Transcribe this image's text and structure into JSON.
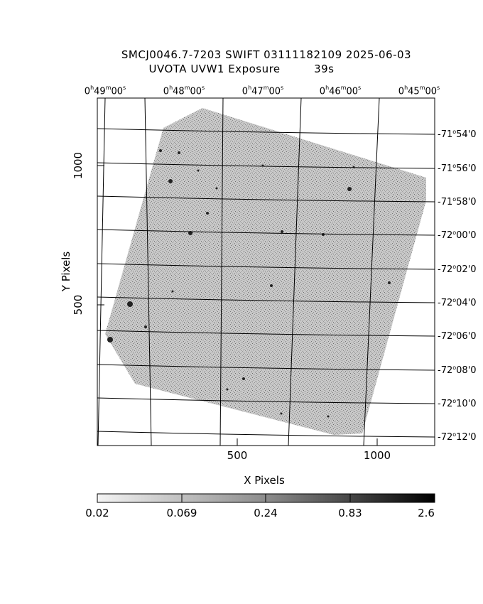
{
  "title": {
    "line1": "SMCJ0046.7-7203 SWIFT 03111182109 2025-06-03",
    "line2": "UVOTA UVW1 Exposure         39s"
  },
  "ra_labels": [
    {
      "h": "0",
      "m": "49",
      "s": "00"
    },
    {
      "h": "0",
      "m": "48",
      "s": "00"
    },
    {
      "h": "0",
      "m": "47",
      "s": "00"
    },
    {
      "h": "0",
      "m": "46",
      "s": "00"
    },
    {
      "h": "0",
      "m": "45",
      "s": "00"
    }
  ],
  "dec_labels": [
    {
      "deg": "-71",
      "min": "54"
    },
    {
      "deg": "-71",
      "min": "56"
    },
    {
      "deg": "-71",
      "min": "58"
    },
    {
      "deg": "-72",
      "min": "00"
    },
    {
      "deg": "-72",
      "min": "02"
    },
    {
      "deg": "-72",
      "min": "04"
    },
    {
      "deg": "-72",
      "min": "06"
    },
    {
      "deg": "-72",
      "min": "08"
    },
    {
      "deg": "-72",
      "min": "10"
    },
    {
      "deg": "-72",
      "min": "12"
    }
  ],
  "x_axis": {
    "label": "X Pixels",
    "ticks": [
      "500",
      "1000"
    ]
  },
  "y_axis": {
    "label": "Y Pixels",
    "ticks": [
      "500",
      "1000"
    ]
  },
  "colorbar": {
    "labels": [
      "0.02",
      "0.069",
      "0.24",
      "0.83",
      "2.6"
    ]
  }
}
